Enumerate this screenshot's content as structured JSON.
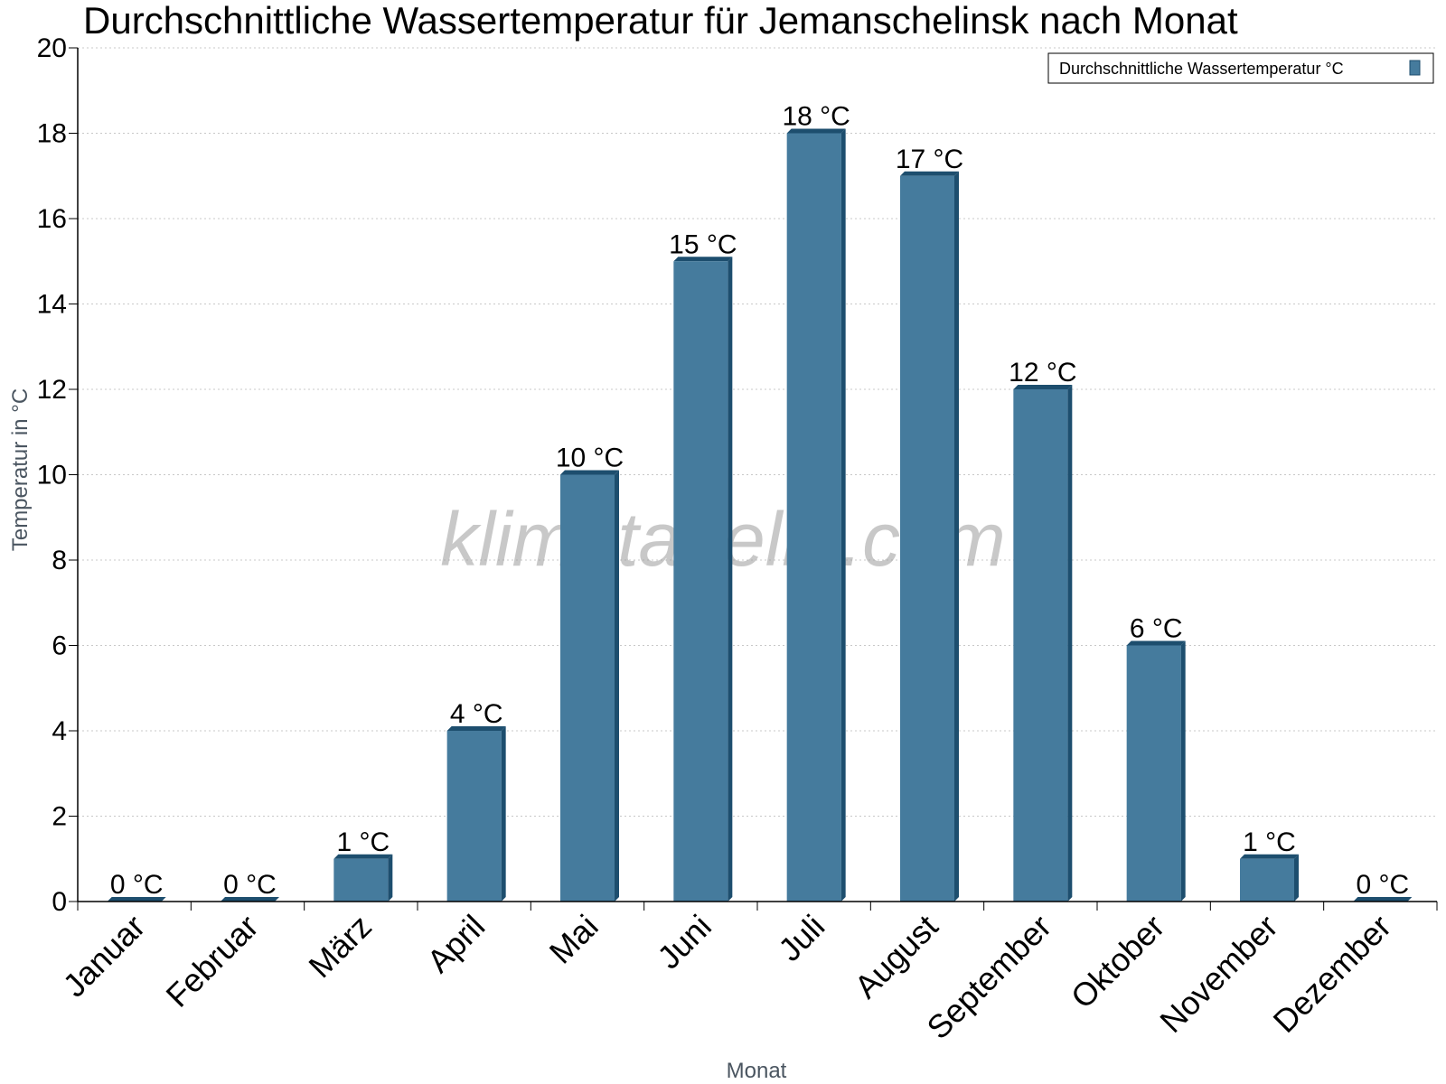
{
  "chart_data": {
    "type": "bar",
    "title": "Durchschnittliche Wassertemperatur für Jemanschelinsk nach Monat",
    "xlabel": "Monat",
    "ylabel": "Temperatur in °C",
    "ylim": [
      0,
      20
    ],
    "yticks": [
      "0",
      "2",
      "4",
      "6",
      "8",
      "10",
      "12",
      "14",
      "16",
      "18",
      "20"
    ],
    "categories": [
      "Januar",
      "Februar",
      "März",
      "April",
      "Mai",
      "Juni",
      "Juli",
      "August",
      "September",
      "Oktober",
      "November",
      "Dezember"
    ],
    "series": [
      {
        "name": "Durchschnittliche Wassertemperatur °C",
        "values": [
          0,
          0,
          1,
          4,
          10,
          15,
          18,
          17,
          12,
          6,
          1,
          0
        ],
        "labels": [
          "0 °C",
          "0 °C",
          "1 °C",
          "4 °C",
          "10 °C",
          "15 °C",
          "18 °C",
          "17 °C",
          "12 °C",
          "6 °C",
          "1 °C",
          "0 °C"
        ]
      }
    ],
    "grid": true,
    "legend_position": "top-right",
    "colors": {
      "bar": "#457b9d",
      "bar_shade": "#1d4e6e",
      "grid": "#c8c8c8"
    },
    "watermark": "klimatabelle.com"
  }
}
